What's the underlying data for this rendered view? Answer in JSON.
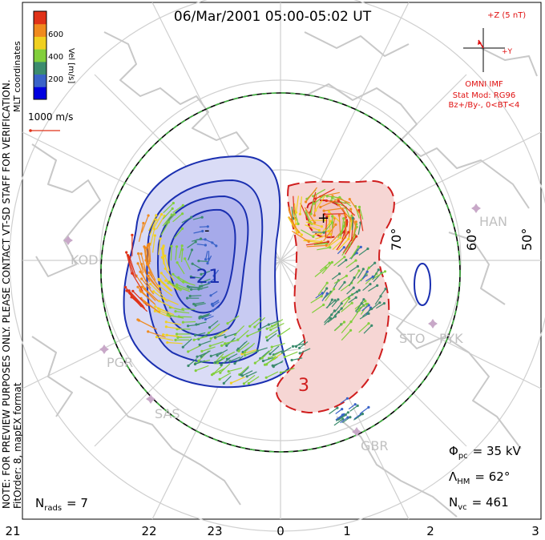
{
  "title": "06/Mar/2001 05:00-05:02 UT",
  "side_note": "NOTE: FOR PREVIEW PURPOSES ONLY. PLEASE CONTACT VT-SD STAFF FOR VERIFICATION.",
  "fit_order": "FitOrder: 8, mapEX format",
  "coord_system": "MLT coordinates",
  "colorbar": {
    "label": "Vel [m/s]",
    "ticks": [
      "600",
      "400",
      "200"
    ],
    "colors": [
      "#0000e0",
      "#3a63c8",
      "#3c8c6e",
      "#82cf3c",
      "#f0d020",
      "#f08a1e",
      "#e03218"
    ]
  },
  "velocity_scale": "1000 m/s",
  "imf": {
    "z_label": "+Z (5 nT)",
    "y_label": "+Y",
    "source": "OMNI IMF",
    "model": "Stat Mod: RG96",
    "condition": "Bz+/By-, 0<BT<4"
  },
  "lat_labels": [
    "70°",
    "60°",
    "50°"
  ],
  "stations": [
    "KOD",
    "PGR",
    "SAS",
    "HAN",
    "STO",
    "PYK",
    "GBR"
  ],
  "contour_labels": [
    "-21",
    "3",
    "-",
    "+"
  ],
  "stats": {
    "phi_pc": "Φ",
    "phi_pc_sub": "pc",
    "phi_pc_value": "= 35 kV",
    "lambda_hm": "Λ",
    "lambda_hm_sub": "HM",
    "lambda_hm_value": "= 62°",
    "n_vc": "N",
    "n_vc_sub": "vc",
    "n_vc_value": "= 461",
    "n_rads": "N",
    "n_rads_sub": "rads",
    "n_rads_value": "= 7"
  },
  "mlt_axis": [
    "21",
    "22",
    "23",
    "0",
    "1",
    "2",
    "3"
  ],
  "colors": {
    "negative_contour": "#1a2fb0",
    "negative_fill": "#b4b8ec",
    "positive_contour": "#d01e1e",
    "positive_fill": "#f6d6d4",
    "coast": "#c8c8c8",
    "station": "#c8a8c8",
    "boundary": "#40b040",
    "annotation_red": "#e01010"
  }
}
